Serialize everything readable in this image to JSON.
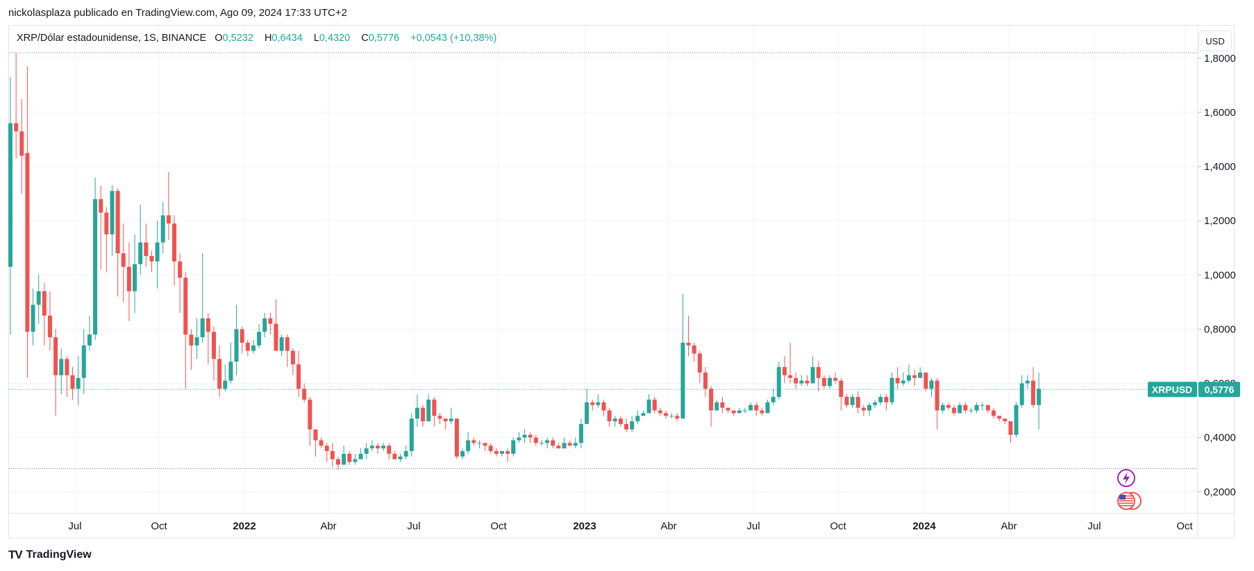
{
  "header": {
    "published_by": "nickolasplaza publicado en TradingView.com, Ago 09, 2024 17:33 UTC+2"
  },
  "legend": {
    "symbol": "XRP/Dólar estadounidense, 1S, BINANCE",
    "open_label": "O",
    "open": "0,5232",
    "high_label": "H",
    "high": "0,6434",
    "low_label": "L",
    "low": "0,4320",
    "close_label": "C",
    "close": "0,5776",
    "change": "+0,0543 (+10,38%)"
  },
  "currency_button": "USD",
  "price_tag": {
    "ticker": "XRPUSD",
    "price": "0,5776"
  },
  "footer": {
    "brand": "TradingView"
  },
  "colors": {
    "up": "#26a69a",
    "down": "#ef5350",
    "grid": "#f0f3fa",
    "text": "#131722",
    "accent_purple": "#9c27b0"
  },
  "event_icons": [
    "lightning-icon",
    "us-flag-icon"
  ],
  "chart_data": {
    "type": "candlestick",
    "timeframe": "1S",
    "x_axis_labels": [
      "Jul",
      "Oct",
      "2022",
      "Abr",
      "Jul",
      "Oct",
      "2023",
      "Abr",
      "Jul",
      "Oct",
      "2024",
      "Abr",
      "Jul",
      "Oct"
    ],
    "y_tick_labels": [
      "1,8000",
      "1,6000",
      "1,4000",
      "1,2000",
      "1,0000",
      "0,8000",
      "0,6000",
      "0,4000",
      "0,2000"
    ],
    "y_ticks": [
      1.8,
      1.6,
      1.4,
      1.2,
      1.0,
      0.8,
      0.6,
      0.4,
      0.2
    ],
    "ylim": [
      0.12,
      1.92
    ],
    "reference_lines": [
      1.82,
      0.285
    ],
    "last_price": 0.5776,
    "grid": true,
    "candles": [
      [
        1.03,
        1.56,
        1.73,
        0.78
      ],
      [
        1.56,
        1.53,
        1.82,
        1.43
      ],
      [
        1.53,
        1.44,
        1.65,
        1.3
      ],
      [
        1.45,
        0.79,
        1.77,
        0.62
      ],
      [
        0.79,
        0.89,
        0.95,
        0.74
      ],
      [
        0.89,
        0.94,
        1.0,
        0.82
      ],
      [
        0.94,
        0.85,
        0.97,
        0.74
      ],
      [
        0.85,
        0.77,
        0.94,
        0.72
      ],
      [
        0.77,
        0.63,
        0.8,
        0.48
      ],
      [
        0.63,
        0.69,
        0.73,
        0.56
      ],
      [
        0.69,
        0.63,
        0.7,
        0.55
      ],
      [
        0.63,
        0.58,
        0.66,
        0.54
      ],
      [
        0.58,
        0.62,
        0.7,
        0.52
      ],
      [
        0.62,
        0.74,
        0.8,
        0.56
      ],
      [
        0.74,
        0.78,
        0.85,
        0.72
      ],
      [
        0.78,
        1.28,
        1.36,
        0.76
      ],
      [
        1.28,
        1.23,
        1.33,
        1.02
      ],
      [
        1.23,
        1.15,
        1.25,
        1.01
      ],
      [
        1.15,
        1.31,
        1.33,
        1.07
      ],
      [
        1.31,
        1.08,
        1.32,
        0.92
      ],
      [
        1.08,
        1.03,
        1.19,
        0.9
      ],
      [
        1.03,
        0.94,
        1.12,
        0.83
      ],
      [
        0.94,
        1.04,
        1.15,
        0.86
      ],
      [
        1.04,
        1.12,
        1.26,
        1.0
      ],
      [
        1.12,
        1.07,
        1.19,
        1.03
      ],
      [
        1.07,
        1.05,
        1.09,
        1.01
      ],
      [
        1.05,
        1.12,
        1.2,
        0.95
      ],
      [
        1.12,
        1.22,
        1.27,
        1.08
      ],
      [
        1.22,
        1.19,
        1.38,
        1.13
      ],
      [
        1.19,
        1.05,
        1.22,
        0.96
      ],
      [
        1.05,
        0.99,
        1.08,
        0.86
      ],
      [
        0.99,
        0.78,
        1.01,
        0.58
      ],
      [
        0.78,
        0.74,
        0.8,
        0.65
      ],
      [
        0.74,
        0.77,
        0.84,
        0.69
      ],
      [
        0.77,
        0.84,
        1.08,
        0.75
      ],
      [
        0.84,
        0.79,
        0.86,
        0.67
      ],
      [
        0.79,
        0.69,
        0.81,
        0.61
      ],
      [
        0.69,
        0.58,
        0.74,
        0.55
      ],
      [
        0.58,
        0.61,
        0.67,
        0.57
      ],
      [
        0.61,
        0.68,
        0.75,
        0.6
      ],
      [
        0.68,
        0.8,
        0.89,
        0.63
      ],
      [
        0.8,
        0.75,
        0.81,
        0.71
      ],
      [
        0.75,
        0.72,
        0.76,
        0.7
      ],
      [
        0.72,
        0.74,
        0.76,
        0.71
      ],
      [
        0.74,
        0.79,
        0.82,
        0.73
      ],
      [
        0.79,
        0.84,
        0.86,
        0.77
      ],
      [
        0.84,
        0.82,
        0.86,
        0.78
      ],
      [
        0.82,
        0.72,
        0.91,
        0.72
      ],
      [
        0.72,
        0.77,
        0.78,
        0.7
      ],
      [
        0.77,
        0.72,
        0.78,
        0.66
      ],
      [
        0.72,
        0.67,
        0.73,
        0.63
      ],
      [
        0.67,
        0.58,
        0.72,
        0.55
      ],
      [
        0.58,
        0.54,
        0.6,
        0.53
      ],
      [
        0.54,
        0.43,
        0.55,
        0.37
      ],
      [
        0.43,
        0.39,
        0.43,
        0.33
      ],
      [
        0.39,
        0.37,
        0.4,
        0.36
      ],
      [
        0.37,
        0.35,
        0.38,
        0.31
      ],
      [
        0.35,
        0.32,
        0.38,
        0.29
      ],
      [
        0.32,
        0.3,
        0.33,
        0.28
      ],
      [
        0.3,
        0.34,
        0.37,
        0.3
      ],
      [
        0.34,
        0.31,
        0.35,
        0.3
      ],
      [
        0.31,
        0.32,
        0.34,
        0.3
      ],
      [
        0.32,
        0.34,
        0.36,
        0.32
      ],
      [
        0.34,
        0.36,
        0.38,
        0.32
      ],
      [
        0.36,
        0.37,
        0.39,
        0.35
      ],
      [
        0.37,
        0.36,
        0.38,
        0.34
      ],
      [
        0.36,
        0.37,
        0.38,
        0.35
      ],
      [
        0.37,
        0.34,
        0.38,
        0.32
      ],
      [
        0.34,
        0.32,
        0.35,
        0.32
      ],
      [
        0.32,
        0.33,
        0.34,
        0.31
      ],
      [
        0.33,
        0.35,
        0.37,
        0.32
      ],
      [
        0.35,
        0.47,
        0.49,
        0.33
      ],
      [
        0.47,
        0.51,
        0.56,
        0.44
      ],
      [
        0.51,
        0.46,
        0.52,
        0.44
      ],
      [
        0.46,
        0.54,
        0.56,
        0.46
      ],
      [
        0.54,
        0.48,
        0.55,
        0.44
      ],
      [
        0.48,
        0.47,
        0.49,
        0.45
      ],
      [
        0.47,
        0.46,
        0.47,
        0.43
      ],
      [
        0.46,
        0.47,
        0.51,
        0.45
      ],
      [
        0.47,
        0.33,
        0.47,
        0.32
      ],
      [
        0.33,
        0.35,
        0.36,
        0.32
      ],
      [
        0.35,
        0.39,
        0.42,
        0.34
      ],
      [
        0.39,
        0.38,
        0.4,
        0.37
      ],
      [
        0.38,
        0.38,
        0.39,
        0.36
      ],
      [
        0.38,
        0.37,
        0.38,
        0.35
      ],
      [
        0.37,
        0.35,
        0.38,
        0.34
      ],
      [
        0.35,
        0.34,
        0.36,
        0.33
      ],
      [
        0.34,
        0.35,
        0.35,
        0.33
      ],
      [
        0.35,
        0.34,
        0.36,
        0.31
      ],
      [
        0.34,
        0.39,
        0.4,
        0.33
      ],
      [
        0.39,
        0.4,
        0.42,
        0.38
      ],
      [
        0.4,
        0.41,
        0.43,
        0.38
      ],
      [
        0.41,
        0.4,
        0.42,
        0.38
      ],
      [
        0.4,
        0.38,
        0.41,
        0.37
      ],
      [
        0.38,
        0.38,
        0.39,
        0.37
      ],
      [
        0.38,
        0.39,
        0.4,
        0.36
      ],
      [
        0.39,
        0.37,
        0.4,
        0.36
      ],
      [
        0.37,
        0.36,
        0.38,
        0.36
      ],
      [
        0.36,
        0.38,
        0.4,
        0.37
      ],
      [
        0.38,
        0.37,
        0.39,
        0.37
      ],
      [
        0.37,
        0.38,
        0.4,
        0.36
      ],
      [
        0.38,
        0.45,
        0.47,
        0.36
      ],
      [
        0.45,
        0.53,
        0.58,
        0.45
      ],
      [
        0.53,
        0.52,
        0.54,
        0.5
      ],
      [
        0.52,
        0.53,
        0.56,
        0.51
      ],
      [
        0.53,
        0.5,
        0.54,
        0.48
      ],
      [
        0.5,
        0.46,
        0.51,
        0.44
      ],
      [
        0.46,
        0.47,
        0.48,
        0.44
      ],
      [
        0.47,
        0.45,
        0.48,
        0.44
      ],
      [
        0.45,
        0.43,
        0.47,
        0.42
      ],
      [
        0.43,
        0.46,
        0.48,
        0.42
      ],
      [
        0.46,
        0.48,
        0.5,
        0.45
      ],
      [
        0.48,
        0.49,
        0.5,
        0.48
      ],
      [
        0.49,
        0.54,
        0.56,
        0.49
      ],
      [
        0.54,
        0.5,
        0.55,
        0.49
      ],
      [
        0.5,
        0.49,
        0.51,
        0.48
      ],
      [
        0.49,
        0.48,
        0.5,
        0.47
      ],
      [
        0.48,
        0.48,
        0.49,
        0.47
      ],
      [
        0.48,
        0.47,
        0.49,
        0.46
      ],
      [
        0.47,
        0.75,
        0.93,
        0.47
      ],
      [
        0.75,
        0.74,
        0.85,
        0.7
      ],
      [
        0.74,
        0.71,
        0.75,
        0.68
      ],
      [
        0.71,
        0.64,
        0.72,
        0.6
      ],
      [
        0.64,
        0.58,
        0.66,
        0.55
      ],
      [
        0.58,
        0.5,
        0.59,
        0.44
      ],
      [
        0.5,
        0.53,
        0.54,
        0.5
      ],
      [
        0.53,
        0.51,
        0.55,
        0.49
      ],
      [
        0.51,
        0.5,
        0.51,
        0.49
      ],
      [
        0.5,
        0.49,
        0.5,
        0.48
      ],
      [
        0.49,
        0.5,
        0.51,
        0.49
      ],
      [
        0.5,
        0.5,
        0.51,
        0.49
      ],
      [
        0.5,
        0.52,
        0.53,
        0.5
      ],
      [
        0.52,
        0.5,
        0.53,
        0.48
      ],
      [
        0.5,
        0.49,
        0.51,
        0.48
      ],
      [
        0.49,
        0.53,
        0.54,
        0.49
      ],
      [
        0.53,
        0.55,
        0.58,
        0.52
      ],
      [
        0.55,
        0.66,
        0.68,
        0.54
      ],
      [
        0.66,
        0.63,
        0.7,
        0.6
      ],
      [
        0.63,
        0.62,
        0.75,
        0.6
      ],
      [
        0.62,
        0.6,
        0.64,
        0.58
      ],
      [
        0.6,
        0.61,
        0.63,
        0.59
      ],
      [
        0.61,
        0.6,
        0.63,
        0.59
      ],
      [
        0.6,
        0.66,
        0.7,
        0.6
      ],
      [
        0.66,
        0.62,
        0.68,
        0.57
      ],
      [
        0.62,
        0.59,
        0.63,
        0.58
      ],
      [
        0.59,
        0.62,
        0.63,
        0.58
      ],
      [
        0.62,
        0.61,
        0.64,
        0.6
      ],
      [
        0.61,
        0.55,
        0.62,
        0.5
      ],
      [
        0.55,
        0.52,
        0.56,
        0.51
      ],
      [
        0.52,
        0.55,
        0.56,
        0.51
      ],
      [
        0.55,
        0.51,
        0.57,
        0.49
      ],
      [
        0.51,
        0.5,
        0.52,
        0.48
      ],
      [
        0.5,
        0.52,
        0.53,
        0.48
      ],
      [
        0.52,
        0.53,
        0.54,
        0.51
      ],
      [
        0.53,
        0.55,
        0.56,
        0.52
      ],
      [
        0.55,
        0.53,
        0.56,
        0.5
      ],
      [
        0.53,
        0.62,
        0.64,
        0.52
      ],
      [
        0.62,
        0.6,
        0.66,
        0.58
      ],
      [
        0.6,
        0.61,
        0.64,
        0.59
      ],
      [
        0.61,
        0.63,
        0.67,
        0.6
      ],
      [
        0.63,
        0.62,
        0.65,
        0.59
      ],
      [
        0.62,
        0.64,
        0.66,
        0.62
      ],
      [
        0.64,
        0.58,
        0.64,
        0.57
      ],
      [
        0.58,
        0.61,
        0.62,
        0.55
      ],
      [
        0.61,
        0.5,
        0.62,
        0.43
      ],
      [
        0.5,
        0.52,
        0.53,
        0.49
      ],
      [
        0.52,
        0.51,
        0.53,
        0.5
      ],
      [
        0.51,
        0.49,
        0.52,
        0.48
      ],
      [
        0.49,
        0.52,
        0.53,
        0.49
      ],
      [
        0.52,
        0.5,
        0.53,
        0.49
      ],
      [
        0.5,
        0.5,
        0.51,
        0.49
      ],
      [
        0.5,
        0.52,
        0.53,
        0.49
      ],
      [
        0.52,
        0.52,
        0.53,
        0.5
      ],
      [
        0.52,
        0.5,
        0.52,
        0.49
      ],
      [
        0.5,
        0.48,
        0.51,
        0.47
      ],
      [
        0.48,
        0.47,
        0.48,
        0.46
      ],
      [
        0.47,
        0.46,
        0.47,
        0.45
      ],
      [
        0.46,
        0.41,
        0.46,
        0.38
      ],
      [
        0.41,
        0.52,
        0.53,
        0.4
      ],
      [
        0.52,
        0.6,
        0.63,
        0.51
      ],
      [
        0.6,
        0.61,
        0.63,
        0.58
      ],
      [
        0.61,
        0.52,
        0.66,
        0.51
      ],
      [
        0.52,
        0.58,
        0.64,
        0.43
      ]
    ]
  }
}
